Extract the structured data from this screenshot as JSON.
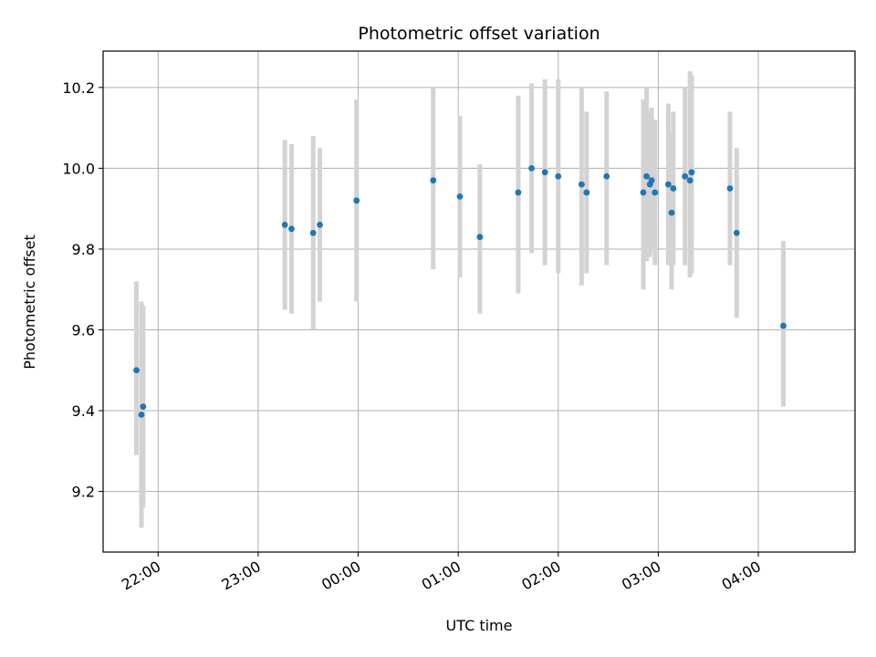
{
  "chart_data": {
    "type": "scatter",
    "title": "Photometric offset variation",
    "xlabel": "UTC time",
    "ylabel": "Photometric offset",
    "x_unit": "UTC clock time (hours past 00:00; negative = previous evening)",
    "xlim": [
      "21:27",
      "04:58"
    ],
    "ylim": [
      9.05,
      10.29
    ],
    "x_ticks": [
      "22:00",
      "23:00",
      "00:00",
      "01:00",
      "02:00",
      "03:00",
      "04:00"
    ],
    "y_ticks": [
      "9.2",
      "9.4",
      "9.6",
      "9.8",
      "10.0",
      "10.2"
    ],
    "grid": true,
    "series": [
      {
        "marker_color": "#1f77b4",
        "errorbar_color": "#d3d3d3",
        "points": [
          {
            "t": "21:47",
            "y": 9.5,
            "lo": 9.29,
            "hi": 9.72
          },
          {
            "t": "21:50",
            "y": 9.39,
            "lo": 9.11,
            "hi": 9.67
          },
          {
            "t": "21:51",
            "y": 9.41,
            "lo": 9.16,
            "hi": 9.66
          },
          {
            "t": "23:16",
            "y": 9.86,
            "lo": 9.65,
            "hi": 10.07
          },
          {
            "t": "23:20",
            "y": 9.85,
            "lo": 9.64,
            "hi": 10.06
          },
          {
            "t": "23:33",
            "y": 9.84,
            "lo": 9.6,
            "hi": 10.08
          },
          {
            "t": "23:37",
            "y": 9.86,
            "lo": 9.67,
            "hi": 10.05
          },
          {
            "t": "23:59",
            "y": 9.92,
            "lo": 9.67,
            "hi": 10.17
          },
          {
            "t": "00:45",
            "y": 9.97,
            "lo": 9.75,
            "hi": 10.2
          },
          {
            "t": "01:01",
            "y": 9.93,
            "lo": 9.73,
            "hi": 10.13
          },
          {
            "t": "01:13",
            "y": 9.83,
            "lo": 9.64,
            "hi": 10.01
          },
          {
            "t": "01:36",
            "y": 9.94,
            "lo": 9.69,
            "hi": 10.18
          },
          {
            "t": "01:44",
            "y": 10.0,
            "lo": 9.79,
            "hi": 10.21
          },
          {
            "t": "01:52",
            "y": 9.99,
            "lo": 9.76,
            "hi": 10.22
          },
          {
            "t": "02:00",
            "y": 9.98,
            "lo": 9.74,
            "hi": 10.22
          },
          {
            "t": "02:14",
            "y": 9.96,
            "lo": 9.71,
            "hi": 10.2
          },
          {
            "t": "02:17",
            "y": 9.94,
            "lo": 9.74,
            "hi": 10.14
          },
          {
            "t": "02:29",
            "y": 9.98,
            "lo": 9.76,
            "hi": 10.19
          },
          {
            "t": "02:51",
            "y": 9.94,
            "lo": 9.7,
            "hi": 10.17
          },
          {
            "t": "02:53",
            "y": 9.98,
            "lo": 9.77,
            "hi": 10.2
          },
          {
            "t": "02:55",
            "y": 9.96,
            "lo": 9.78,
            "hi": 10.14
          },
          {
            "t": "02:56",
            "y": 9.97,
            "lo": 9.8,
            "hi": 10.15
          },
          {
            "t": "02:58",
            "y": 9.94,
            "lo": 9.76,
            "hi": 10.12
          },
          {
            "t": "03:06",
            "y": 9.96,
            "lo": 9.76,
            "hi": 10.16
          },
          {
            "t": "03:08",
            "y": 9.89,
            "lo": 9.7,
            "hi": 10.09
          },
          {
            "t": "03:09",
            "y": 9.95,
            "lo": 9.76,
            "hi": 10.14
          },
          {
            "t": "03:16",
            "y": 9.98,
            "lo": 9.76,
            "hi": 10.2
          },
          {
            "t": "03:19",
            "y": 9.97,
            "lo": 9.73,
            "hi": 10.24
          },
          {
            "t": "03:20",
            "y": 9.99,
            "lo": 9.74,
            "hi": 10.23
          },
          {
            "t": "03:43",
            "y": 9.95,
            "lo": 9.76,
            "hi": 10.14
          },
          {
            "t": "03:47",
            "y": 9.84,
            "lo": 9.63,
            "hi": 10.05
          },
          {
            "t": "04:15",
            "y": 9.61,
            "lo": 9.41,
            "hi": 9.82
          }
        ]
      }
    ]
  }
}
